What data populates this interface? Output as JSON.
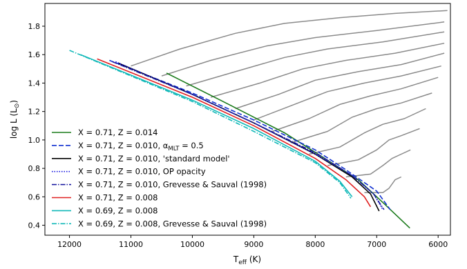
{
  "chart_data": {
    "type": "line",
    "xlabel": "T",
    "xlabel_sub": "eff",
    "xlabel_unit": " (K)",
    "ylabel": "log L (L",
    "ylabel_sub": "⊙",
    "ylabel_end": ")",
    "xlim": [
      12400,
      5800
    ],
    "ylim": [
      0.33,
      1.96
    ],
    "x_inverted": true,
    "grid": false,
    "legend_position": "lower-left",
    "x_ticks": [
      {
        "value": 12000,
        "label": "12000"
      },
      {
        "value": 11000,
        "label": "11000"
      },
      {
        "value": 10000,
        "label": "10000"
      },
      {
        "value": 9000,
        "label": "9000"
      },
      {
        "value": 8000,
        "label": "8000"
      },
      {
        "value": 7000,
        "label": "7000"
      },
      {
        "value": 6000,
        "label": "6000"
      }
    ],
    "y_ticks": [
      {
        "value": 0.4,
        "label": "0.4"
      },
      {
        "value": 0.6,
        "label": "0.6"
      },
      {
        "value": 0.8,
        "label": "0.8"
      },
      {
        "value": 1.0,
        "label": "1.0"
      },
      {
        "value": 1.2,
        "label": "1.2"
      },
      {
        "value": 1.4,
        "label": "1.4"
      },
      {
        "value": 1.6,
        "label": "1.6"
      },
      {
        "value": 1.8,
        "label": "1.8"
      }
    ],
    "series": [
      {
        "name": "X = 0.71, Z = 0.014",
        "name_sub": "",
        "name_end": "",
        "color": "#1a7a1a",
        "dash": "",
        "width": 1.6,
        "points": [
          [
            10420,
            1.47
          ],
          [
            9500,
            1.27
          ],
          [
            8500,
            1.05
          ],
          [
            7700,
            0.83
          ],
          [
            7300,
            0.72
          ],
          [
            7050,
            0.62
          ],
          [
            6900,
            0.56
          ],
          [
            6460,
            0.38
          ]
        ]
      },
      {
        "name": "X = 0.71, Z = 0.010, α",
        "name_sub": "MLT",
        "name_end": " = 0.5",
        "color": "#1030d0",
        "dash": "7,3",
        "width": 1.6,
        "points": [
          [
            11350,
            1.56
          ],
          [
            10000,
            1.33
          ],
          [
            9000,
            1.14
          ],
          [
            8000,
            0.93
          ],
          [
            7500,
            0.79
          ],
          [
            7000,
            0.64
          ],
          [
            6780,
            0.51
          ]
        ]
      },
      {
        "name": "X = 0.71, Z = 0.010, 'standard model'",
        "name_sub": "",
        "name_end": "",
        "color": "#000000",
        "dash": "",
        "width": 1.6,
        "points": [
          [
            11200,
            1.54
          ],
          [
            10000,
            1.32
          ],
          [
            9000,
            1.12
          ],
          [
            8000,
            0.9
          ],
          [
            7400,
            0.74
          ],
          [
            7100,
            0.62
          ],
          [
            6960,
            0.5
          ]
        ]
      },
      {
        "name": "X = 0.71, Z = 0.010, OP opacity",
        "name_sub": "",
        "name_end": "",
        "color": "#1010e0",
        "dash": "1.5,2",
        "width": 1.6,
        "points": [
          [
            11250,
            1.55
          ],
          [
            10000,
            1.32
          ],
          [
            9000,
            1.12
          ],
          [
            8000,
            0.9
          ],
          [
            7400,
            0.75
          ],
          [
            7050,
            0.62
          ],
          [
            6900,
            0.51
          ]
        ]
      },
      {
        "name": "X = 0.71, Z = 0.010, Grevesse & Sauval (1998)",
        "name_sub": "",
        "name_end": "",
        "color": "#1a1aa0",
        "dash": "7,2,1.5,2",
        "width": 1.6,
        "points": [
          [
            11300,
            1.55
          ],
          [
            10000,
            1.32
          ],
          [
            9000,
            1.12
          ],
          [
            8000,
            0.91
          ],
          [
            7400,
            0.75
          ],
          [
            7050,
            0.62
          ],
          [
            6880,
            0.51
          ]
        ]
      },
      {
        "name": "X = 0.71, Z = 0.008",
        "name_sub": "",
        "name_end": "",
        "color": "#e02020",
        "dash": "",
        "width": 1.6,
        "points": [
          [
            11550,
            1.57
          ],
          [
            10000,
            1.3
          ],
          [
            9000,
            1.1
          ],
          [
            8000,
            0.87
          ],
          [
            7500,
            0.72
          ],
          [
            7200,
            0.6
          ],
          [
            7100,
            0.53
          ]
        ]
      },
      {
        "name": "X = 0.69, Z = 0.008",
        "name_sub": "",
        "name_end": "",
        "color": "#10b8b8",
        "dash": "",
        "width": 1.6,
        "points": [
          [
            11820,
            1.6
          ],
          [
            10000,
            1.28
          ],
          [
            9000,
            1.08
          ],
          [
            8000,
            0.85
          ],
          [
            7600,
            0.71
          ],
          [
            7400,
            0.6
          ]
        ]
      },
      {
        "name": "X = 0.69, Z = 0.008, Grevesse & Sauval (1998)",
        "name_sub": "",
        "name_end": "",
        "color": "#10b8b8",
        "dash": "7,2,1.5,2",
        "width": 1.6,
        "points": [
          [
            12000,
            1.63
          ],
          [
            10000,
            1.27
          ],
          [
            9000,
            1.06
          ],
          [
            8000,
            0.84
          ],
          [
            7600,
            0.7
          ],
          [
            7420,
            0.59
          ]
        ]
      }
    ],
    "tracks": {
      "color": "#8a8a8a",
      "lines": [
        [
          [
            7200,
            0.63
          ],
          [
            6900,
            0.63
          ],
          [
            6800,
            0.66
          ],
          [
            6700,
            0.72
          ],
          [
            6600,
            0.74
          ]
        ],
        [
          [
            7500,
            0.74
          ],
          [
            7100,
            0.76
          ],
          [
            6900,
            0.82
          ],
          [
            6750,
            0.87
          ],
          [
            6600,
            0.9
          ],
          [
            6450,
            0.93
          ]
        ],
        [
          [
            7800,
            0.82
          ],
          [
            7300,
            0.86
          ],
          [
            7000,
            0.93
          ],
          [
            6800,
            1.0
          ],
          [
            6600,
            1.03
          ],
          [
            6300,
            1.08
          ]
        ],
        [
          [
            8100,
            0.9
          ],
          [
            7600,
            0.95
          ],
          [
            7200,
            1.05
          ],
          [
            6900,
            1.11
          ],
          [
            6550,
            1.15
          ],
          [
            6200,
            1.22
          ]
        ],
        [
          [
            8400,
            0.98
          ],
          [
            7800,
            1.06
          ],
          [
            7400,
            1.16
          ],
          [
            7000,
            1.22
          ],
          [
            6600,
            1.26
          ],
          [
            6100,
            1.33
          ]
        ],
        [
          [
            8700,
            1.06
          ],
          [
            8100,
            1.15
          ],
          [
            7600,
            1.25
          ],
          [
            7100,
            1.31
          ],
          [
            6600,
            1.36
          ],
          [
            6000,
            1.44
          ]
        ],
        [
          [
            9000,
            1.14
          ],
          [
            8400,
            1.24
          ],
          [
            7800,
            1.34
          ],
          [
            7200,
            1.4
          ],
          [
            6600,
            1.45
          ],
          [
            5950,
            1.52
          ]
        ],
        [
          [
            9300,
            1.22
          ],
          [
            8600,
            1.32
          ],
          [
            8000,
            1.42
          ],
          [
            7300,
            1.48
          ],
          [
            6600,
            1.53
          ],
          [
            5900,
            1.61
          ]
        ],
        [
          [
            9700,
            1.3
          ],
          [
            8900,
            1.4
          ],
          [
            8200,
            1.5
          ],
          [
            7500,
            1.56
          ],
          [
            6700,
            1.61
          ],
          [
            5900,
            1.68
          ]
        ],
        [
          [
            10100,
            1.38
          ],
          [
            9300,
            1.48
          ],
          [
            8500,
            1.58
          ],
          [
            7800,
            1.64
          ],
          [
            6900,
            1.69
          ],
          [
            5900,
            1.76
          ]
        ],
        [
          [
            10500,
            1.45
          ],
          [
            9700,
            1.56
          ],
          [
            8800,
            1.66
          ],
          [
            8000,
            1.72
          ],
          [
            7000,
            1.77
          ],
          [
            5900,
            1.83
          ]
        ],
        [
          [
            11000,
            1.52
          ],
          [
            10200,
            1.64
          ],
          [
            9300,
            1.75
          ],
          [
            8500,
            1.82
          ],
          [
            7600,
            1.86
          ],
          [
            6700,
            1.89
          ],
          [
            5850,
            1.91
          ]
        ]
      ]
    }
  }
}
